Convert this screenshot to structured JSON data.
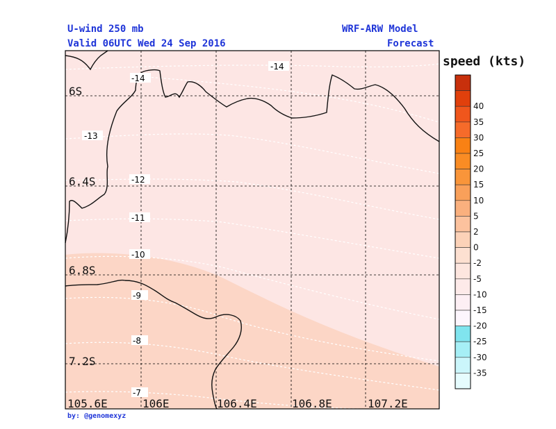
{
  "header": {
    "left_line1": "U-wind 250 mb",
    "left_line2": "Valid 06UTC Wed 24 Sep 2016",
    "right_line1": "WRF-ARW Model",
    "right_line2": "Forecast"
  },
  "legend": {
    "title": "speed (kts)",
    "levels": [
      {
        "label": "",
        "color": "#c8300c"
      },
      {
        "label": "40",
        "color": "#e1400c"
      },
      {
        "label": "35",
        "color": "#f0561c"
      },
      {
        "label": "30",
        "color": "#f66b2a"
      },
      {
        "label": "25",
        "color": "#f98114"
      },
      {
        "label": "20",
        "color": "#f98c24"
      },
      {
        "label": "15",
        "color": "#f9953a"
      },
      {
        "label": "10",
        "color": "#f9a05a"
      },
      {
        "label": "5",
        "color": "#fab07e"
      },
      {
        "label": "2",
        "color": "#fcc29e"
      },
      {
        "label": "0",
        "color": "#fcd2b8"
      },
      {
        "label": "-2",
        "color": "#fde0d1"
      },
      {
        "label": "-5",
        "color": "#fde6df"
      },
      {
        "label": "-10",
        "color": "#fdeae9"
      },
      {
        "label": "-15",
        "color": "#fdeff4"
      },
      {
        "label": "-20",
        "color": "#fdf6fd"
      },
      {
        "label": "-25",
        "color": "#80e4ee"
      },
      {
        "label": "-30",
        "color": "#a6eff6"
      },
      {
        "label": "-35",
        "color": "#cbf6fb"
      },
      {
        "label": "",
        "color": "#e6fcfe"
      }
    ]
  },
  "axes": {
    "lon_labels": [
      "105.6E",
      "106E",
      "106.4E",
      "106.8E",
      "107.2E"
    ],
    "lat_labels": [
      "6S",
      "6.4S",
      "6.8S",
      "7.2S"
    ]
  },
  "contours": {
    "labels": [
      "-14",
      "-14",
      "-13",
      "-12",
      "-11",
      "-10",
      "-9",
      "-8",
      "-7"
    ]
  },
  "colors": {
    "field_low": "#fde6e4",
    "field_high": "#fcd6c6",
    "header_text": "#1f35d8"
  },
  "credit": "by: @genomexyz"
}
